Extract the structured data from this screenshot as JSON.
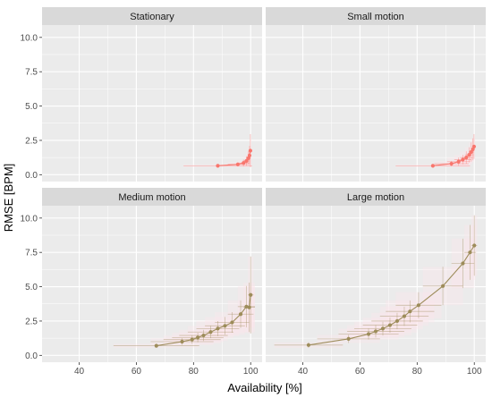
{
  "chart_data": {
    "type": "line",
    "title": "",
    "xlabel": "Availability [%]",
    "ylabel": "RMSE [BPM]",
    "xlim": [
      27,
      104
    ],
    "ylim": [
      -0.5,
      10.9
    ],
    "x_ticks": [
      40,
      60,
      80,
      100
    ],
    "y_ticks": [
      0.0,
      2.5,
      5.0,
      7.5,
      10.0
    ],
    "x_tick_labels": [
      "40",
      "60",
      "80",
      "100"
    ],
    "y_tick_labels": [
      "0.0",
      "2.5",
      "5.0",
      "7.5",
      "10.0"
    ],
    "grid": true,
    "facets": [
      {
        "title": "Stationary",
        "color": "#f8766d",
        "points": [
          {
            "x": 88.5,
            "y": 0.65,
            "xerr": 12.0,
            "yerr": 0.1
          },
          {
            "x": 95.5,
            "y": 0.75,
            "xerr": 3.5,
            "yerr": 0.15
          },
          {
            "x": 97.5,
            "y": 0.85,
            "xerr": 2.0,
            "yerr": 0.25
          },
          {
            "x": 98.5,
            "y": 1.0,
            "xerr": 1.2,
            "yerr": 0.35
          },
          {
            "x": 99.2,
            "y": 1.2,
            "xerr": 0.8,
            "yerr": 0.5
          },
          {
            "x": 99.6,
            "y": 1.4,
            "xerr": 0.5,
            "yerr": 0.7
          },
          {
            "x": 99.9,
            "y": 1.75,
            "xerr": 0.2,
            "yerr": 1.2
          }
        ]
      },
      {
        "title": "Small motion",
        "color": "#f8766d",
        "points": [
          {
            "x": 85.5,
            "y": 0.65,
            "xerr": 13.0,
            "yerr": 0.1
          },
          {
            "x": 92.0,
            "y": 0.8,
            "xerr": 6.0,
            "yerr": 0.2
          },
          {
            "x": 94.5,
            "y": 0.95,
            "xerr": 4.0,
            "yerr": 0.3
          },
          {
            "x": 96.0,
            "y": 1.1,
            "xerr": 3.0,
            "yerr": 0.35
          },
          {
            "x": 97.2,
            "y": 1.25,
            "xerr": 2.2,
            "yerr": 0.45
          },
          {
            "x": 98.2,
            "y": 1.45,
            "xerr": 1.5,
            "yerr": 0.55
          },
          {
            "x": 98.9,
            "y": 1.65,
            "xerr": 0.9,
            "yerr": 0.7
          },
          {
            "x": 99.5,
            "y": 1.85,
            "xerr": 0.5,
            "yerr": 0.8
          },
          {
            "x": 99.9,
            "y": 2.05,
            "xerr": 0.2,
            "yerr": 0.9
          }
        ]
      },
      {
        "title": "Medium motion",
        "color": "#9d8c5a",
        "points": [
          {
            "x": 67.0,
            "y": 0.7,
            "xerr": 15.0,
            "yerr": 0.15
          },
          {
            "x": 76.0,
            "y": 1.0,
            "xerr": 11.0,
            "yerr": 0.25
          },
          {
            "x": 79.5,
            "y": 1.15,
            "xerr": 10.0,
            "yerr": 0.3
          },
          {
            "x": 81.5,
            "y": 1.3,
            "xerr": 9.0,
            "yerr": 0.35
          },
          {
            "x": 83.5,
            "y": 1.45,
            "xerr": 8.5,
            "yerr": 0.4
          },
          {
            "x": 86.0,
            "y": 1.7,
            "xerr": 8.0,
            "yerr": 0.45
          },
          {
            "x": 88.5,
            "y": 1.95,
            "xerr": 7.5,
            "yerr": 0.55
          },
          {
            "x": 91.0,
            "y": 2.15,
            "xerr": 7.0,
            "yerr": 0.65
          },
          {
            "x": 93.5,
            "y": 2.4,
            "xerr": 6.0,
            "yerr": 0.75
          },
          {
            "x": 96.5,
            "y": 3.0,
            "xerr": 4.5,
            "yerr": 1.0
          },
          {
            "x": 98.5,
            "y": 3.55,
            "xerr": 3.0,
            "yerr": 1.5
          },
          {
            "x": 99.5,
            "y": 3.5,
            "xerr": 2.0,
            "yerr": 1.8
          },
          {
            "x": 100.0,
            "y": 4.4,
            "xerr": 1.0,
            "yerr": 2.8
          }
        ]
      },
      {
        "title": "Large motion",
        "color": "#9d8c5a",
        "points": [
          {
            "x": 42.0,
            "y": 0.75,
            "xerr": 12.0,
            "yerr": 0.2
          },
          {
            "x": 56.0,
            "y": 1.2,
            "xerr": 11.0,
            "yerr": 0.3
          },
          {
            "x": 63.0,
            "y": 1.55,
            "xerr": 10.5,
            "yerr": 0.4
          },
          {
            "x": 65.5,
            "y": 1.75,
            "xerr": 10.0,
            "yerr": 0.45
          },
          {
            "x": 68.0,
            "y": 1.95,
            "xerr": 10.0,
            "yerr": 0.5
          },
          {
            "x": 70.5,
            "y": 2.2,
            "xerr": 9.5,
            "yerr": 0.55
          },
          {
            "x": 73.0,
            "y": 2.5,
            "xerr": 9.0,
            "yerr": 0.6
          },
          {
            "x": 75.5,
            "y": 2.85,
            "xerr": 8.5,
            "yerr": 0.7
          },
          {
            "x": 77.5,
            "y": 3.2,
            "xerr": 8.5,
            "yerr": 0.8
          },
          {
            "x": 80.5,
            "y": 3.65,
            "xerr": 8.0,
            "yerr": 0.95
          },
          {
            "x": 89.0,
            "y": 5.05,
            "xerr": 7.0,
            "yerr": 1.4
          },
          {
            "x": 96.0,
            "y": 6.7,
            "xerr": 4.0,
            "yerr": 1.8
          },
          {
            "x": 98.5,
            "y": 7.5,
            "xerr": 2.0,
            "yerr": 2.0
          },
          {
            "x": 100.0,
            "y": 8.0,
            "xerr": 1.0,
            "yerr": 2.2
          }
        ]
      }
    ]
  },
  "colors": {
    "panel_background": "#ebebeb",
    "strip_background": "#d9d9d9",
    "grid": "#ffffff",
    "shading": "#fce4ec"
  }
}
